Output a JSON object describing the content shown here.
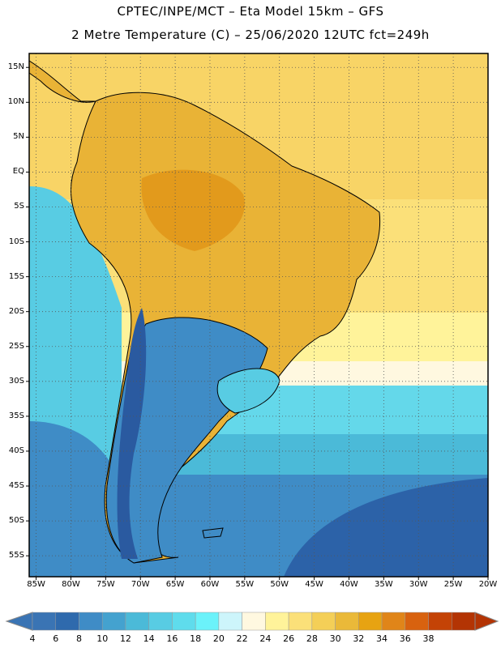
{
  "header": {
    "line1": "CPTEC/INPE/MCT –  Eta Model 15km – GFS",
    "line2": "2 Metre Temperature (C) – 25/06/2020 12UTC fct=249h"
  },
  "axes": {
    "lat_labels": [
      "15N",
      "10N",
      "5N",
      "EQ",
      "5S",
      "10S",
      "15S",
      "20S",
      "25S",
      "30S",
      "35S",
      "40S",
      "45S",
      "50S",
      "55S"
    ],
    "lat_values": [
      15,
      10,
      5,
      0,
      -5,
      -10,
      -15,
      -20,
      -25,
      -30,
      -35,
      -40,
      -45,
      -50,
      -55
    ],
    "lon_labels": [
      "85W",
      "80W",
      "75W",
      "70W",
      "65W",
      "60W",
      "55W",
      "50W",
      "45W",
      "40W",
      "35W",
      "30W",
      "25W",
      "20W"
    ],
    "lon_values": [
      -85,
      -80,
      -75,
      -70,
      -65,
      -60,
      -55,
      -50,
      -45,
      -40,
      -35,
      -30,
      -25,
      -20
    ],
    "lat_range": [
      -58,
      17
    ],
    "lon_range": [
      -86,
      -20
    ]
  },
  "colorbar": {
    "labels": [
      "4",
      "6",
      "8",
      "10",
      "12",
      "14",
      "16",
      "18",
      "20",
      "22",
      "24",
      "26",
      "28",
      "30",
      "32",
      "34",
      "36",
      "38"
    ],
    "colors": [
      "#3a74b4",
      "#2f6aad",
      "#3f8cc6",
      "#44a2cf",
      "#4bbad8",
      "#58cce3",
      "#5fdcec",
      "#6bf2fa",
      "#cdf5fb",
      "#fff8e0",
      "#fff39a",
      "#fbe079",
      "#f4cf57",
      "#eab939",
      "#e7a312",
      "#e08519",
      "#d8620f",
      "#c44306",
      "#b33404"
    ]
  },
  "map": {
    "grid": "dotted",
    "colors": {
      "ocean_cold": "#2c62a8",
      "ocean_cool": "#3f8fc7",
      "ocean_mild": "#55c6df",
      "ocean_warm": "#64d8ea",
      "ocean_tropical": "#fbe079",
      "ocean_hot": "#f4c94c",
      "land_hot": "#eab030",
      "land_veryhot": "#e39a1c",
      "land_cold": "#2a5aa0",
      "coast": "#000000"
    }
  }
}
